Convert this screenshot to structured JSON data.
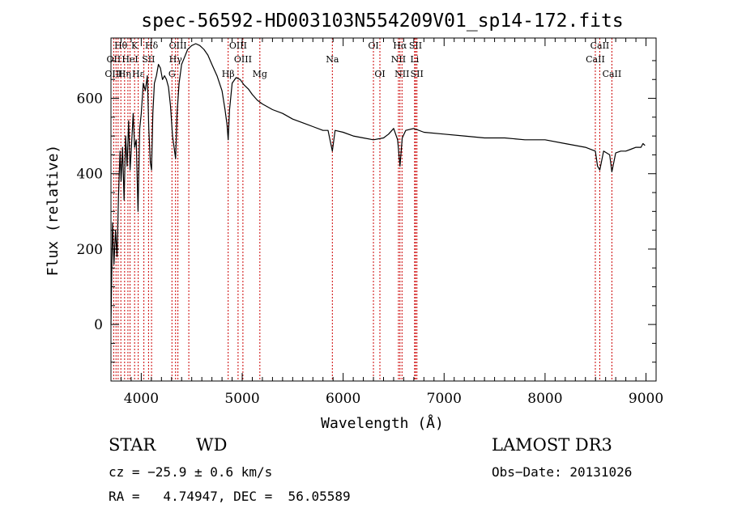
{
  "chart_data": {
    "type": "line",
    "title": "spec-56592-HD003103N554209V01_sp14-172.fits",
    "xlabel": "Wavelength (Å)",
    "ylabel": "Flux (relative)",
    "xlim": [
      3700,
      9100
    ],
    "ylim": [
      -150,
      760
    ],
    "xticks": [
      4000,
      5000,
      6000,
      7000,
      8000,
      9000
    ],
    "yticks": [
      0,
      200,
      400,
      600
    ],
    "grid": false,
    "legend": "none",
    "line_color": "#000000",
    "marker_color": "#cc0000",
    "series": [
      {
        "x": [
          3700,
          3715,
          3730,
          3745,
          3760,
          3775,
          3790,
          3800,
          3815,
          3830,
          3845,
          3860,
          3875,
          3889,
          3905,
          3920,
          3934,
          3950,
          3968,
          3985,
          4000,
          4020,
          4040,
          4060,
          4075,
          4090,
          4102,
          4115,
          4130,
          4150,
          4170,
          4190,
          4210,
          4230,
          4250,
          4270,
          4290,
          4310,
          4325,
          4340,
          4355,
          4375,
          4400,
          4430,
          4460,
          4500,
          4540,
          4580,
          4620,
          4660,
          4700,
          4750,
          4800,
          4830,
          4850,
          4861,
          4875,
          4900,
          4940,
          4980,
          5020,
          5060,
          5100,
          5150,
          5200,
          5300,
          5400,
          5500,
          5600,
          5700,
          5800,
          5850,
          5893,
          5920,
          6000,
          6100,
          6200,
          6300,
          6400,
          6450,
          6500,
          6540,
          6563,
          6585,
          6620,
          6700,
          6800,
          7000,
          7200,
          7400,
          7600,
          7800,
          8000,
          8200,
          8400,
          8498,
          8520,
          8542,
          8580,
          8640,
          8662,
          8700,
          8750,
          8800,
          8850,
          8900,
          8950,
          8970,
          8990
        ],
        "y": [
          0,
          270,
          160,
          250,
          180,
          340,
          460,
          380,
          470,
          330,
          500,
          420,
          540,
          410,
          480,
          560,
          470,
          490,
          300,
          520,
          560,
          640,
          620,
          660,
          520,
          430,
          410,
          560,
          640,
          660,
          690,
          680,
          650,
          660,
          650,
          630,
          580,
          500,
          470,
          440,
          560,
          640,
          690,
          710,
          730,
          740,
          745,
          740,
          730,
          715,
          690,
          660,
          620,
          570,
          530,
          490,
          570,
          640,
          655,
          650,
          635,
          625,
          610,
          595,
          585,
          570,
          560,
          545,
          535,
          525,
          515,
          515,
          460,
          515,
          510,
          500,
          495,
          490,
          495,
          505,
          520,
          490,
          420,
          495,
          515,
          520,
          510,
          505,
          500,
          495,
          495,
          490,
          490,
          480,
          470,
          460,
          420,
          410,
          460,
          450,
          405,
          455,
          460,
          460,
          465,
          470,
          470,
          480,
          475
        ]
      }
    ],
    "spectral_lines": [
      {
        "label": "Hθ",
        "x": 3798,
        "row": 0
      },
      {
        "label": "K",
        "x": 3934,
        "row": 0
      },
      {
        "label": "Hδ",
        "x": 4102,
        "row": 0
      },
      {
        "label": "OIII",
        "x": 4363,
        "row": 0
      },
      {
        "label": "OIII",
        "x": 4959,
        "row": 0
      },
      {
        "label": "OI",
        "x": 6300,
        "row": 0
      },
      {
        "label": "Hα",
        "x": 6563,
        "row": 0
      },
      {
        "label": "SII",
        "x": 6717,
        "row": 0
      },
      {
        "label": "CaII",
        "x": 8542,
        "row": 0
      },
      {
        "label": "OII",
        "x": 3727,
        "row": 1
      },
      {
        "label": "HeI",
        "x": 3889,
        "row": 1
      },
      {
        "label": "SII",
        "x": 4072,
        "row": 1
      },
      {
        "label": "Hγ",
        "x": 4340,
        "row": 1
      },
      {
        "label": "OIII",
        "x": 5007,
        "row": 1
      },
      {
        "label": "Na",
        "x": 5893,
        "row": 1
      },
      {
        "label": "NII",
        "x": 6548,
        "row": 1
      },
      {
        "label": "Li",
        "x": 6708,
        "row": 1
      },
      {
        "label": "CaII",
        "x": 8498,
        "row": 1
      },
      {
        "label": "OIII",
        "x": 3727,
        "row": 2
      },
      {
        "label": "Hη",
        "x": 3835,
        "row": 2
      },
      {
        "label": "Hε",
        "x": 3970,
        "row": 2
      },
      {
        "label": "G",
        "x": 4304,
        "row": 2
      },
      {
        "label": "Hβ",
        "x": 4861,
        "row": 2
      },
      {
        "label": "Mg",
        "x": 5175,
        "row": 2
      },
      {
        "label": "OI",
        "x": 6364,
        "row": 2
      },
      {
        "label": "NII",
        "x": 6583,
        "row": 2
      },
      {
        "label": "SII",
        "x": 6731,
        "row": 2
      },
      {
        "label": "CaII",
        "x": 8662,
        "row": 2
      }
    ],
    "extra_line_positions": [
      3750,
      3771,
      3868,
      4026,
      4471
    ]
  },
  "info": {
    "object_class": "STAR",
    "subclass": "WD",
    "survey": "LAMOST DR3",
    "cz": "cz = −25.9 ± 0.6 km/s",
    "obs_date": "Obs−Date: 20131026",
    "coords": "RA =   4.74947, DEC =  56.05589"
  }
}
